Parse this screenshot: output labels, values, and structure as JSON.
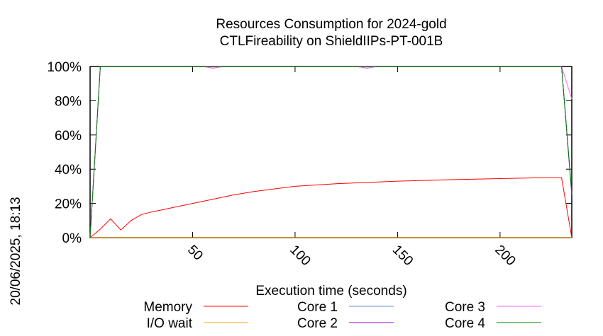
{
  "chart_data": {
    "type": "line",
    "title": [
      "Resources Consumption for 2024-gold",
      "CTLFireability on ShieldIIPs-PT-001B"
    ],
    "xlabel": "Execution time (seconds)",
    "ylabel": "",
    "side_label": "20/06/2025, 18:13",
    "xlim": [
      0,
      235
    ],
    "ylim": [
      0,
      100
    ],
    "x_ticks": [
      50,
      100,
      150,
      200
    ],
    "y_ticks": [
      0,
      20,
      40,
      60,
      80,
      100
    ],
    "y_tick_labels": [
      "0%",
      "20%",
      "40%",
      "60%",
      "80%",
      "100%"
    ],
    "grid": false,
    "legend_placement": "bottom",
    "series": [
      {
        "name": "Memory",
        "color": "#ff0000",
        "x": [
          0,
          5,
          10,
          15,
          20,
          25,
          30,
          40,
          50,
          60,
          70,
          80,
          90,
          100,
          120,
          150,
          180,
          200,
          220,
          230,
          235
        ],
        "y": [
          0,
          5,
          11,
          4.5,
          10,
          13.5,
          15,
          17.5,
          20,
          22.5,
          25,
          27,
          28.5,
          30,
          31.5,
          33,
          34,
          34.5,
          35,
          35,
          0
        ]
      },
      {
        "name": "I/O wait",
        "color": "#ffa500",
        "x": [
          0,
          235
        ],
        "y": [
          0,
          0
        ]
      },
      {
        "name": "Core 1",
        "color": "#6f8fd8",
        "x": [
          0,
          5,
          230,
          235
        ],
        "y": [
          0,
          100,
          100,
          25
        ]
      },
      {
        "name": "Core 2",
        "color": "#9400d3",
        "x": [
          0,
          5,
          55,
          60,
          65,
          130,
          135,
          140,
          230,
          235
        ],
        "y": [
          0,
          100,
          100,
          99,
          100,
          100,
          99,
          100,
          100,
          25
        ]
      },
      {
        "name": "Core 3",
        "color": "#ff66ff",
        "x": [
          0,
          5,
          55,
          60,
          65,
          130,
          135,
          140,
          230,
          235
        ],
        "y": [
          0,
          100,
          100,
          99,
          100,
          100,
          99,
          100,
          100,
          81
        ]
      },
      {
        "name": "Core 4",
        "color": "#008000",
        "x": [
          0,
          5,
          230,
          235
        ],
        "y": [
          0,
          100,
          100,
          26
        ]
      }
    ]
  }
}
